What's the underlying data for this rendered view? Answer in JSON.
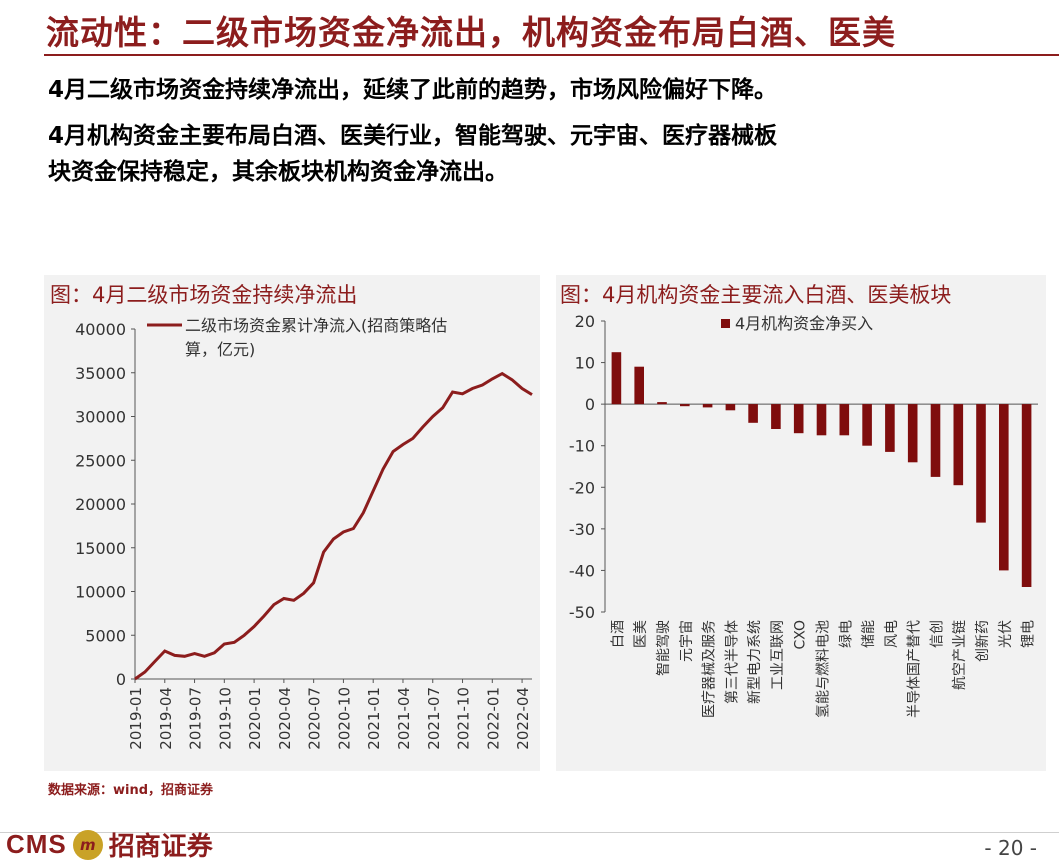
{
  "header": {
    "title": "流动性：二级市场资金净流出，机构资金布局白酒、医美",
    "line1": "4月二级市场资金持续净流出，延续了此前的趋势，市场风险偏好下降。",
    "line2": "4月机构资金主要布局白酒、医美行业，智能驾驶、元宇宙、医疗器械板",
    "line3": "块资金保持稳定，其余板块机构资金净流出。"
  },
  "chart_left_title": "图：4月二级市场资金持续净流出",
  "chart_right_title": "图：4月机构资金主要流入白酒、医美板块",
  "source": "数据来源：wind，招商证券",
  "footer": {
    "logo_cms": "CMS",
    "logo_badge": "m",
    "logo_name": "招商证券",
    "page": "- 20 -"
  },
  "colors": {
    "accent": "#8c1d1d",
    "panel_bg": "#f2f2f2"
  },
  "chart_data": [
    {
      "type": "line",
      "legend_line1": "二级市场资金累计净流入(招商策略估",
      "legend_line2": "算，亿元)",
      "series": [
        {
          "name": "二级市场资金累计净流入(招商策略估算，亿元)",
          "x": [
            "2019-01",
            "2019-02",
            "2019-03",
            "2019-04",
            "2019-05",
            "2019-06",
            "2019-07",
            "2019-08",
            "2019-09",
            "2019-10",
            "2019-11",
            "2019-12",
            "2020-01",
            "2020-02",
            "2020-03",
            "2020-04",
            "2020-05",
            "2020-06",
            "2020-07",
            "2020-08",
            "2020-09",
            "2020-10",
            "2020-11",
            "2020-12",
            "2021-01",
            "2021-02",
            "2021-03",
            "2021-04",
            "2021-05",
            "2021-06",
            "2021-07",
            "2021-08",
            "2021-09",
            "2021-10",
            "2021-11",
            "2021-12",
            "2022-01",
            "2022-02",
            "2022-03",
            "2022-04",
            "2022-05"
          ],
          "y": [
            0,
            800,
            2000,
            3200,
            2700,
            2600,
            2900,
            2600,
            3000,
            4000,
            4200,
            5000,
            6000,
            7200,
            8500,
            9200,
            9000,
            9800,
            11000,
            14500,
            16000,
            16800,
            17200,
            19000,
            21500,
            24000,
            26000,
            26800,
            27500,
            28800,
            30000,
            31000,
            32800,
            32600,
            33200,
            33600,
            34300,
            34900,
            34200,
            33200,
            32500
          ]
        }
      ],
      "xticks": [
        "2019-01",
        "2019-04",
        "2019-07",
        "2019-10",
        "2020-01",
        "2020-04",
        "2020-07",
        "2020-10",
        "2021-01",
        "2021-04",
        "2021-07",
        "2021-10",
        "2022-01",
        "2022-04"
      ],
      "yticks": [
        "0",
        "5000",
        "10000",
        "15000",
        "20000",
        "25000",
        "30000",
        "35000",
        "40000"
      ],
      "ylim": [
        0,
        40000
      ]
    },
    {
      "type": "bar",
      "legend": "4月机构资金净买入",
      "categories": [
        "白酒",
        "医美",
        "智能驾驶",
        "元宇宙",
        "医疗器械及服务",
        "第三代半导体",
        "新型电力系统",
        "工业互联网",
        "CXO",
        "氢能与燃料电池",
        "绿电",
        "储能",
        "风电",
        "半导体国产替代",
        "信创",
        "航空产业链",
        "创新药",
        "光伏",
        "锂电"
      ],
      "values": [
        12.5,
        9,
        0.5,
        -0.5,
        -0.8,
        -1.5,
        -4.5,
        -6,
        -7,
        -7.5,
        -7.5,
        -10,
        -11.5,
        -14,
        -17.5,
        -19.5,
        -28.5,
        -40,
        -44
      ],
      "yticks": [
        "20",
        "10",
        "0",
        "-10",
        "-20",
        "-30",
        "-40",
        "-50"
      ],
      "ylim": [
        -50,
        20
      ]
    }
  ]
}
